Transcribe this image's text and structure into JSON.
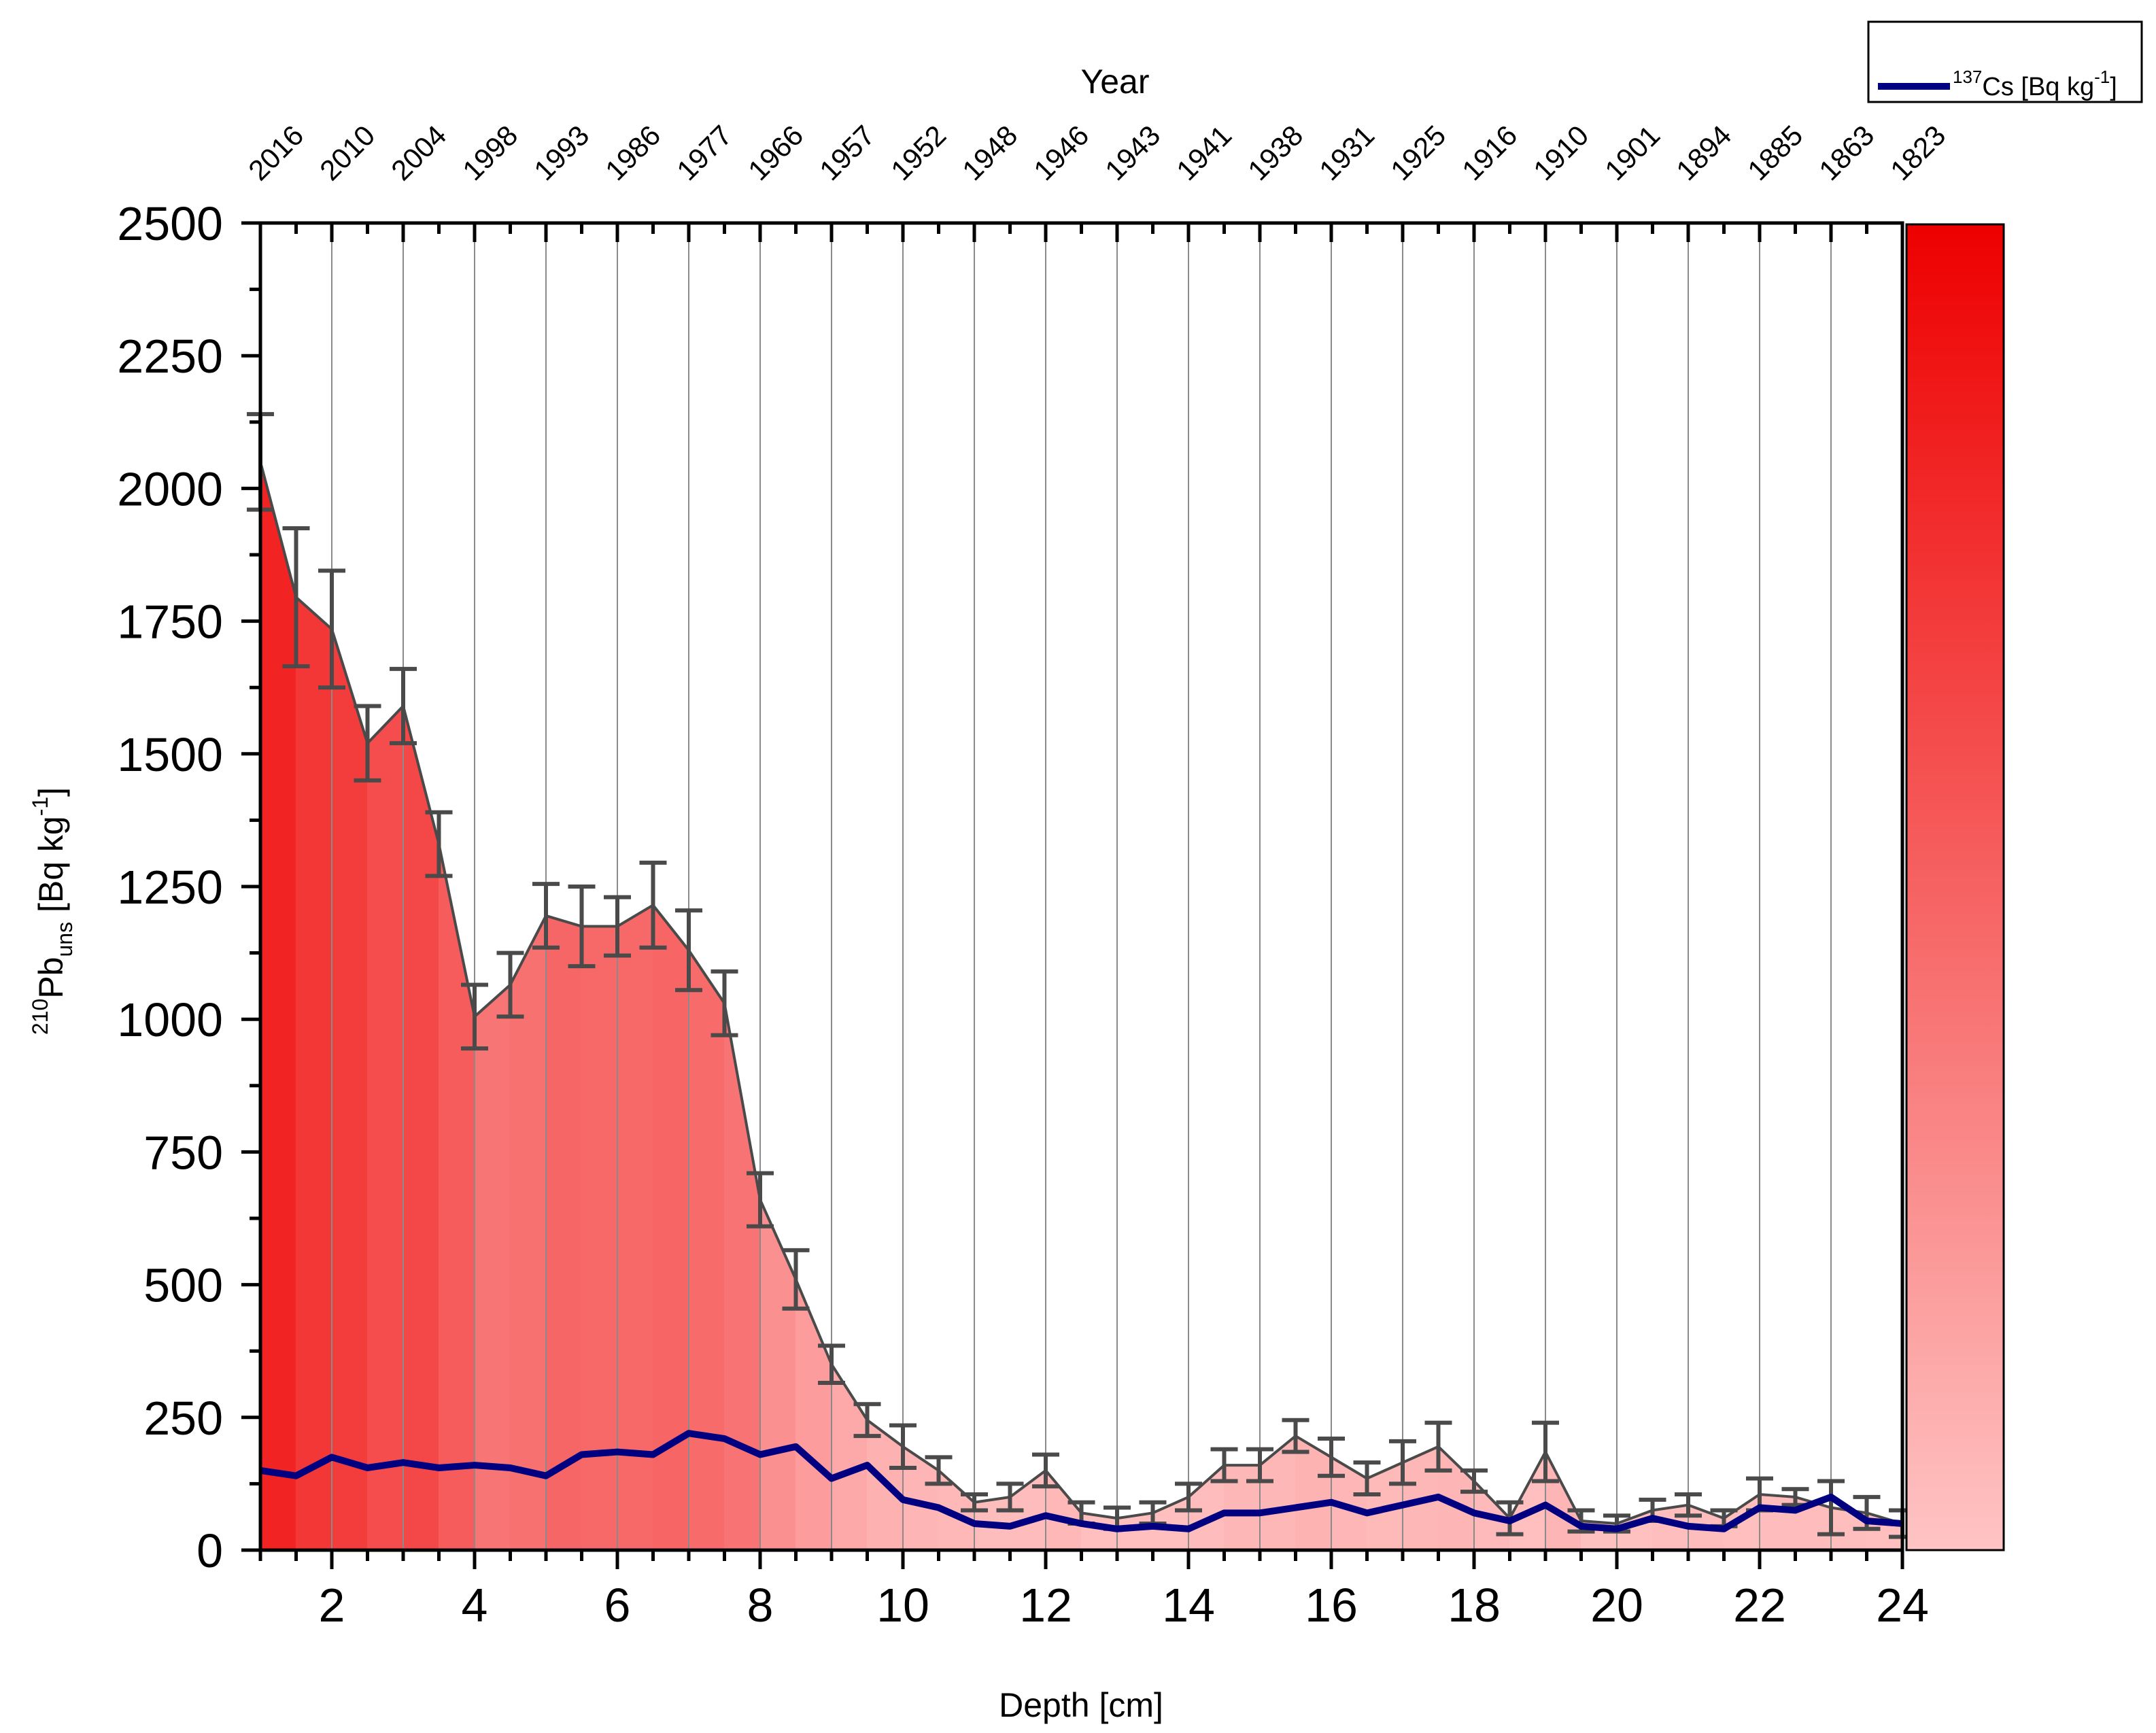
{
  "chart_data": {
    "type": "area",
    "xlabel": "Depth [cm]",
    "ylabel": {
      "main": "Pb",
      "sup": "210",
      "sub": "uns",
      "unit": " [Bq kg",
      "unit_sup": "-1",
      "unit_end": "]"
    },
    "top_axis_title": "Year",
    "xlim": [
      1,
      24
    ],
    "ylim": [
      0,
      2500
    ],
    "x_ticks": [
      2,
      4,
      6,
      8,
      10,
      12,
      14,
      16,
      18,
      20,
      22,
      24
    ],
    "x_tick_labels": [
      "2",
      "4",
      "6",
      "8",
      "10",
      "12",
      "14",
      "16",
      "18",
      "20",
      "22",
      "24"
    ],
    "y_ticks": [
      0,
      250,
      500,
      750,
      1000,
      1250,
      1500,
      1750,
      2000,
      2250,
      2500
    ],
    "y_tick_labels": [
      "0",
      "250",
      "500",
      "750",
      "1000",
      "1250",
      "1500",
      "1750",
      "2000",
      "2250",
      "2500"
    ],
    "years": [
      {
        "depth": 1,
        "label": "2016"
      },
      {
        "depth": 2,
        "label": "2010"
      },
      {
        "depth": 3,
        "label": "2004"
      },
      {
        "depth": 4,
        "label": "1998"
      },
      {
        "depth": 5,
        "label": "1993"
      },
      {
        "depth": 6,
        "label": "1986"
      },
      {
        "depth": 7,
        "label": "1977"
      },
      {
        "depth": 8,
        "label": "1966"
      },
      {
        "depth": 9,
        "label": "1957"
      },
      {
        "depth": 10,
        "label": "1952"
      },
      {
        "depth": 11,
        "label": "1948"
      },
      {
        "depth": 12,
        "label": "1946"
      },
      {
        "depth": 13,
        "label": "1943"
      },
      {
        "depth": 14,
        "label": "1941"
      },
      {
        "depth": 15,
        "label": "1938"
      },
      {
        "depth": 16,
        "label": "1931"
      },
      {
        "depth": 17,
        "label": "1925"
      },
      {
        "depth": 18,
        "label": "1916"
      },
      {
        "depth": 19,
        "label": "1910"
      },
      {
        "depth": 20,
        "label": "1901"
      },
      {
        "depth": 21,
        "label": "1894"
      },
      {
        "depth": 22,
        "label": "1885"
      },
      {
        "depth": 23,
        "label": "1863"
      },
      {
        "depth": 24,
        "label": "1823"
      }
    ],
    "series": [
      {
        "name": "210Pb uns",
        "color": "#4a4a4a",
        "fill_gradient": [
          "#ee0000",
          "#ffc4c4"
        ],
        "x": [
          1,
          1.5,
          2,
          2.5,
          3,
          3.5,
          4,
          4.5,
          5,
          5.5,
          6,
          6.5,
          7,
          7.5,
          8,
          8.5,
          9,
          9.5,
          10,
          10.5,
          11,
          11.5,
          12,
          12.5,
          13,
          13.5,
          14,
          14.5,
          15,
          15.5,
          16,
          16.5,
          17,
          17.5,
          18,
          18.5,
          19,
          19.5,
          20,
          20.5,
          21,
          21.5,
          22,
          22.5,
          23,
          23.5,
          24
        ],
        "values": [
          2050,
          1795,
          1735,
          1520,
          1590,
          1330,
          1005,
          1065,
          1195,
          1175,
          1175,
          1215,
          1130,
          1030,
          660,
          510,
          350,
          245,
          195,
          150,
          90,
          100,
          150,
          70,
          60,
          70,
          100,
          160,
          160,
          215,
          175,
          135,
          165,
          195,
          130,
          60,
          185,
          55,
          50,
          75,
          85,
          60,
          105,
          100,
          80,
          70,
          50
        ],
        "errors": [
          90,
          130,
          110,
          70,
          70,
          60,
          60,
          60,
          60,
          75,
          55,
          80,
          75,
          60,
          50,
          55,
          35,
          30,
          40,
          25,
          15,
          25,
          30,
          20,
          20,
          20,
          25,
          30,
          30,
          30,
          35,
          30,
          40,
          45,
          20,
          30,
          55,
          20,
          15,
          20,
          20,
          15,
          30,
          15,
          50,
          30,
          25
        ]
      },
      {
        "name": "137Cs [Bq kg-1]",
        "color": "#000080",
        "x": [
          1,
          1.5,
          2,
          2.5,
          3,
          3.5,
          4,
          4.5,
          5,
          5.5,
          6,
          6.5,
          7,
          7.5,
          8,
          8.5,
          9,
          9.5,
          10,
          10.5,
          11,
          11.5,
          12,
          12.5,
          13,
          13.5,
          14,
          14.5,
          15,
          15.5,
          16,
          16.5,
          17,
          17.5,
          18,
          18.5,
          19,
          19.5,
          20,
          20.5,
          21,
          21.5,
          22,
          22.5,
          23,
          23.5,
          24
        ],
        "values": [
          150,
          140,
          175,
          155,
          165,
          155,
          160,
          155,
          140,
          180,
          185,
          180,
          220,
          210,
          180,
          195,
          135,
          160,
          95,
          80,
          50,
          45,
          65,
          50,
          40,
          45,
          40,
          70,
          70,
          80,
          90,
          70,
          85,
          100,
          70,
          55,
          85,
          45,
          40,
          60,
          45,
          40,
          80,
          75,
          100,
          55,
          50
        ]
      }
    ],
    "legend": {
      "placement": "top-right",
      "cs_prefix": "137",
      "cs_main": "Cs [Bq kg",
      "cs_sup": "-1",
      "cs_end": "]"
    }
  }
}
